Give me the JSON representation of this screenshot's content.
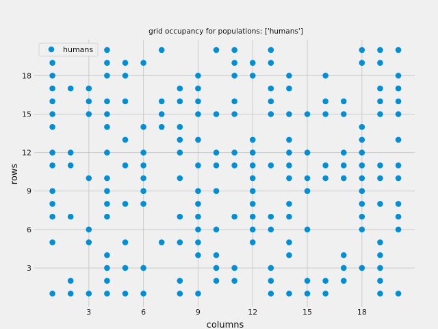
{
  "chart_data": {
    "type": "scatter",
    "title": "grid occupancy for populations: ['humans']",
    "xlabel": "columns",
    "ylabel": "rows",
    "xlim": [
      0.0,
      20.9
    ],
    "ylim": [
      -0.05,
      20.8
    ],
    "xticks": [
      3,
      6,
      9,
      12,
      15,
      18
    ],
    "yticks": [
      3,
      6,
      9,
      12,
      15,
      18
    ],
    "grid": true,
    "legend_position": "top-left",
    "series": [
      {
        "name": "humans",
        "color": "#008fd5",
        "points": [
          [
            1,
            1
          ],
          [
            1,
            5
          ],
          [
            1,
            7
          ],
          [
            1,
            8
          ],
          [
            1,
            9
          ],
          [
            1,
            11
          ],
          [
            1,
            12
          ],
          [
            1,
            14
          ],
          [
            1,
            15
          ],
          [
            1,
            16
          ],
          [
            1,
            17
          ],
          [
            1,
            18
          ],
          [
            1,
            19
          ],
          [
            1,
            20
          ],
          [
            2,
            1
          ],
          [
            2,
            2
          ],
          [
            2,
            7
          ],
          [
            2,
            11
          ],
          [
            2,
            12
          ],
          [
            2,
            17
          ],
          [
            3,
            1
          ],
          [
            3,
            5
          ],
          [
            3,
            6
          ],
          [
            3,
            10
          ],
          [
            3,
            15
          ],
          [
            3,
            16
          ],
          [
            3,
            17
          ],
          [
            3,
            20
          ],
          [
            4,
            1
          ],
          [
            4,
            2
          ],
          [
            4,
            3
          ],
          [
            4,
            4
          ],
          [
            4,
            7
          ],
          [
            4,
            8
          ],
          [
            4,
            9
          ],
          [
            4,
            10
          ],
          [
            4,
            12
          ],
          [
            4,
            14
          ],
          [
            4,
            15
          ],
          [
            4,
            16
          ],
          [
            4,
            18
          ],
          [
            4,
            19
          ],
          [
            4,
            20
          ],
          [
            5,
            1
          ],
          [
            5,
            3
          ],
          [
            5,
            5
          ],
          [
            5,
            8
          ],
          [
            5,
            11
          ],
          [
            5,
            13
          ],
          [
            5,
            16
          ],
          [
            5,
            18
          ],
          [
            5,
            19
          ],
          [
            6,
            1
          ],
          [
            6,
            3
          ],
          [
            6,
            8
          ],
          [
            6,
            9
          ],
          [
            6,
            10
          ],
          [
            6,
            11
          ],
          [
            6,
            12
          ],
          [
            6,
            14
          ],
          [
            6,
            19
          ],
          [
            7,
            5
          ],
          [
            7,
            14
          ],
          [
            7,
            15
          ],
          [
            7,
            16
          ],
          [
            7,
            20
          ],
          [
            8,
            1
          ],
          [
            8,
            2
          ],
          [
            8,
            5
          ],
          [
            8,
            7
          ],
          [
            8,
            10
          ],
          [
            8,
            12
          ],
          [
            8,
            13
          ],
          [
            8,
            14
          ],
          [
            8,
            16
          ],
          [
            8,
            17
          ],
          [
            9,
            1
          ],
          [
            9,
            4
          ],
          [
            9,
            5
          ],
          [
            9,
            6
          ],
          [
            9,
            7
          ],
          [
            9,
            8
          ],
          [
            9,
            9
          ],
          [
            9,
            11
          ],
          [
            9,
            13
          ],
          [
            9,
            15
          ],
          [
            9,
            16
          ],
          [
            9,
            17
          ],
          [
            9,
            18
          ],
          [
            10,
            2
          ],
          [
            10,
            3
          ],
          [
            10,
            4
          ],
          [
            10,
            6
          ],
          [
            10,
            9
          ],
          [
            10,
            11
          ],
          [
            10,
            12
          ],
          [
            10,
            15
          ],
          [
            10,
            20
          ],
          [
            11,
            2
          ],
          [
            11,
            3
          ],
          [
            11,
            7
          ],
          [
            11,
            11
          ],
          [
            11,
            12
          ],
          [
            11,
            15
          ],
          [
            11,
            16
          ],
          [
            11,
            18
          ],
          [
            11,
            19
          ],
          [
            11,
            20
          ],
          [
            12,
            5
          ],
          [
            12,
            6
          ],
          [
            12,
            7
          ],
          [
            12,
            8
          ],
          [
            12,
            9
          ],
          [
            12,
            10
          ],
          [
            12,
            11
          ],
          [
            12,
            12
          ],
          [
            12,
            13
          ],
          [
            12,
            18
          ],
          [
            12,
            19
          ],
          [
            13,
            1
          ],
          [
            13,
            2
          ],
          [
            13,
            3
          ],
          [
            13,
            6
          ],
          [
            13,
            7
          ],
          [
            13,
            11
          ],
          [
            13,
            15
          ],
          [
            13,
            16
          ],
          [
            13,
            17
          ],
          [
            13,
            19
          ],
          [
            13,
            20
          ],
          [
            14,
            1
          ],
          [
            14,
            4
          ],
          [
            14,
            5
          ],
          [
            14,
            7
          ],
          [
            14,
            8
          ],
          [
            14,
            10
          ],
          [
            14,
            11
          ],
          [
            14,
            12
          ],
          [
            14,
            13
          ],
          [
            14,
            15
          ],
          [
            14,
            17
          ],
          [
            14,
            18
          ],
          [
            15,
            1
          ],
          [
            15,
            2
          ],
          [
            15,
            6
          ],
          [
            15,
            9
          ],
          [
            15,
            10
          ],
          [
            15,
            12
          ],
          [
            15,
            15
          ],
          [
            16,
            1
          ],
          [
            16,
            2
          ],
          [
            16,
            10
          ],
          [
            16,
            11
          ],
          [
            16,
            15
          ],
          [
            16,
            16
          ],
          [
            16,
            18
          ],
          [
            17,
            2
          ],
          [
            17,
            3
          ],
          [
            17,
            4
          ],
          [
            17,
            10
          ],
          [
            17,
            11
          ],
          [
            17,
            12
          ],
          [
            17,
            15
          ],
          [
            17,
            16
          ],
          [
            18,
            3
          ],
          [
            18,
            6
          ],
          [
            18,
            7
          ],
          [
            18,
            8
          ],
          [
            18,
            9
          ],
          [
            18,
            10
          ],
          [
            18,
            11
          ],
          [
            18,
            12
          ],
          [
            18,
            13
          ],
          [
            18,
            14
          ],
          [
            18,
            19
          ],
          [
            18,
            20
          ],
          [
            19,
            1
          ],
          [
            19,
            2
          ],
          [
            19,
            3
          ],
          [
            19,
            4
          ],
          [
            19,
            5
          ],
          [
            19,
            8
          ],
          [
            19,
            10
          ],
          [
            19,
            11
          ],
          [
            19,
            15
          ],
          [
            19,
            16
          ],
          [
            19,
            17
          ],
          [
            19,
            19
          ],
          [
            19,
            20
          ],
          [
            20,
            1
          ],
          [
            20,
            6
          ],
          [
            20,
            7
          ],
          [
            20,
            8
          ],
          [
            20,
            10
          ],
          [
            20,
            11
          ],
          [
            20,
            13
          ],
          [
            20,
            15
          ],
          [
            20,
            16
          ],
          [
            20,
            17
          ],
          [
            20,
            18
          ],
          [
            20,
            20
          ]
        ]
      }
    ]
  }
}
